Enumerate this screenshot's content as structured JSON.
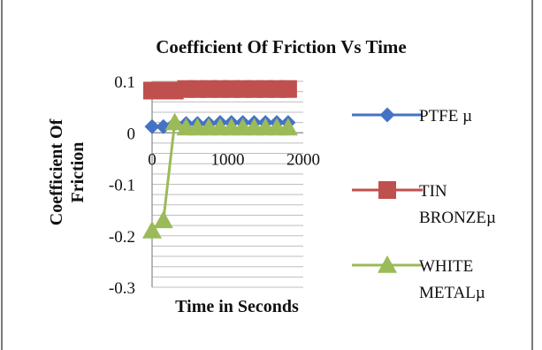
{
  "chart_data": {
    "type": "line",
    "title": "Coefficient Of Friction Vs Time",
    "xlabel": "Time in Seconds",
    "ylabel": "Coefficient Of Friction",
    "xlim": [
      0,
      2000
    ],
    "ylim": [
      -0.3,
      0.1
    ],
    "x_ticks": [
      0,
      1000,
      2000
    ],
    "x_tick_labels": [
      "0",
      "1000",
      "2000"
    ],
    "y_ticks": [
      0.1,
      0,
      -0.1,
      -0.2,
      -0.3
    ],
    "y_tick_labels": [
      "0.1",
      "0",
      "-0.1",
      "-0.2",
      "-0.3"
    ],
    "grid": true,
    "legend_position": "right",
    "x": [
      0,
      150,
      300,
      450,
      600,
      750,
      900,
      1050,
      1200,
      1350,
      1500,
      1650,
      1800
    ],
    "series": [
      {
        "name": "PTFE µ",
        "marker": "diamond",
        "color": "#4472C4",
        "values": [
          0.012,
          0.012,
          0.018,
          0.018,
          0.018,
          0.018,
          0.02,
          0.02,
          0.02,
          0.02,
          0.02,
          0.02,
          0.02
        ]
      },
      {
        "name": "TIN BRONZEµ",
        "marker": "square",
        "color": "#C0504D",
        "values": [
          0.082,
          0.082,
          0.082,
          0.085,
          0.085,
          0.085,
          0.085,
          0.085,
          0.085,
          0.085,
          0.085,
          0.085,
          0.085
        ]
      },
      {
        "name": "WHITE METALµ",
        "marker": "triangle",
        "color": "#9BBB59",
        "values": [
          -0.19,
          -0.17,
          0.02,
          0.01,
          0.01,
          0.01,
          0.01,
          0.01,
          0.01,
          0.01,
          0.01,
          0.01,
          0.01
        ]
      }
    ],
    "legend_lines": [
      [
        "PTFE µ"
      ],
      [
        "TIN",
        "BRONZEµ"
      ],
      [
        "WHITE",
        "METALµ"
      ]
    ],
    "ylabel_lines": [
      "Coefficient Of",
      "Friction"
    ]
  }
}
